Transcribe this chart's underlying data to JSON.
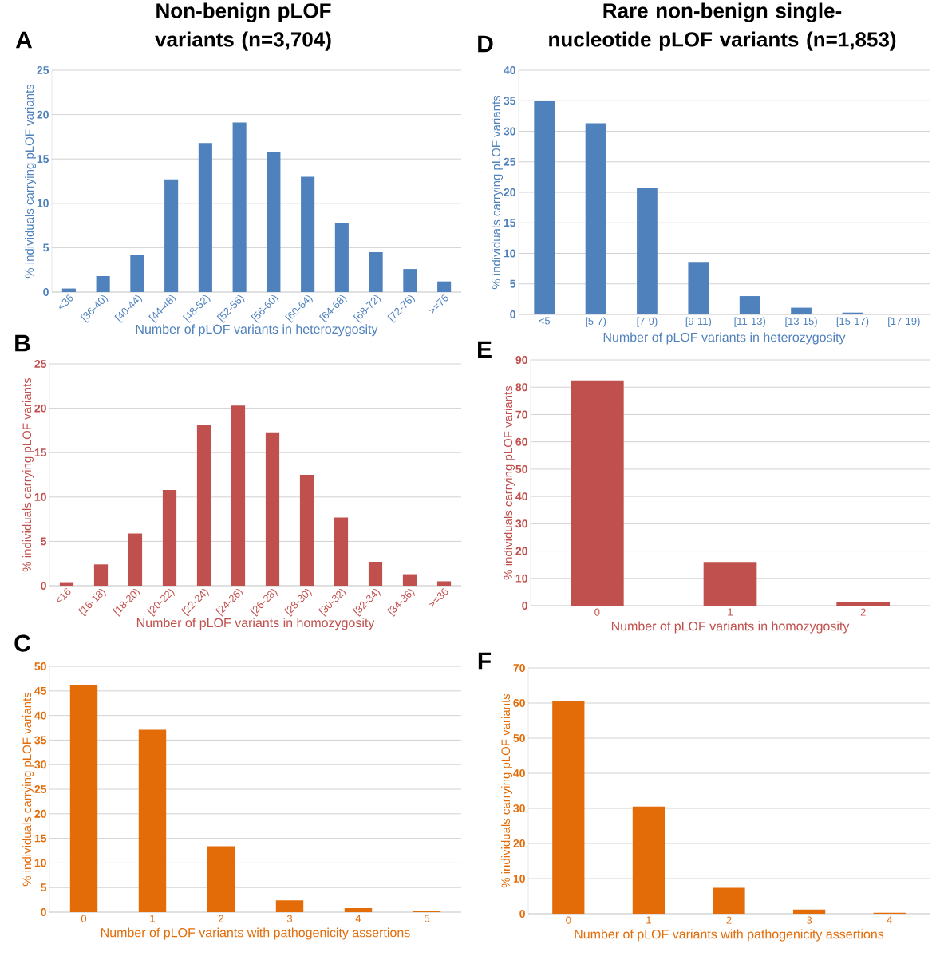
{
  "chart_data": [
    {
      "type": "bar",
      "title": "Non-benign pLOF variants (n=3,704)",
      "annotations": [
        "A"
      ],
      "categories": [
        "<36",
        "[36-40)",
        "[40-44)",
        "[44-48)",
        "[48-52)",
        "[52-56)",
        "[56-60)",
        "[60-64)",
        "[64-68)",
        "[68-72)",
        "[72-76)",
        ">=76"
      ],
      "values": [
        0.4,
        1.8,
        4.2,
        12.7,
        16.8,
        19.1,
        15.8,
        13.0,
        7.8,
        4.5,
        2.6,
        1.2
      ],
      "color": "#4f81bd",
      "xlabel": "Number of pLOF variants in heterozygosity",
      "ylabel": "% individuals carrying pLOF variants",
      "ylim": [
        0,
        25
      ],
      "yticks": [
        0,
        5,
        10,
        15,
        20,
        25
      ],
      "grid": "y"
    },
    {
      "type": "bar",
      "title": "Rare non-benign single-nucleotide pLOF variants (n=1,853)",
      "annotations": [
        "D"
      ],
      "categories": [
        "<5",
        "[5-7)",
        "[7-9)",
        "[9-11)",
        "[11-13)",
        "[13-15)",
        "[15-17)",
        "[17-19)"
      ],
      "values": [
        35.0,
        31.3,
        20.7,
        8.6,
        3.0,
        1.1,
        0.3,
        0.1
      ],
      "color": "#4f81bd",
      "xlabel": "Number of pLOF variants in heterozygosity",
      "ylabel": "% individuals carrying pLOF variants",
      "ylim": [
        0,
        40
      ],
      "yticks": [
        0,
        5,
        10,
        15,
        20,
        25,
        30,
        35,
        40
      ],
      "grid": "y"
    },
    {
      "type": "bar",
      "annotations": [
        "B"
      ],
      "categories": [
        "<16",
        "[16-18)",
        "[18-20)",
        "[20-22)",
        "[22-24)",
        "[24-26)",
        "[26-28)",
        "[28-30)",
        "[30-32)",
        "[32-34)",
        "[34-36)",
        ">=36"
      ],
      "values": [
        0.4,
        2.4,
        5.9,
        10.8,
        18.1,
        20.3,
        17.3,
        12.5,
        7.7,
        2.7,
        1.3,
        0.5
      ],
      "color": "#c0504d",
      "xlabel": "Number of pLOF variants in homozygosity",
      "ylabel": "% individuals carrying pLOF variants",
      "ylim": [
        0,
        25
      ],
      "yticks": [
        0,
        5,
        10,
        15,
        20,
        25
      ],
      "grid": "y"
    },
    {
      "type": "bar",
      "annotations": [
        "E"
      ],
      "categories": [
        "0",
        "1",
        "2"
      ],
      "values": [
        82.5,
        16.0,
        1.3
      ],
      "color": "#c0504d",
      "xlabel": "Number of pLOF variants in homozygosity",
      "ylabel": "% individuals carrying pLOF variants",
      "ylim": [
        0,
        90
      ],
      "yticks": [
        0,
        10,
        20,
        30,
        40,
        50,
        60,
        70,
        80,
        90
      ],
      "grid": "y"
    },
    {
      "type": "bar",
      "annotations": [
        "C"
      ],
      "categories": [
        "0",
        "1",
        "2",
        "3",
        "4",
        "5"
      ],
      "values": [
        46.1,
        37.1,
        13.4,
        2.4,
        0.8,
        0.2
      ],
      "color": "#e36c09",
      "xlabel": "Number of pLOF variants with pathogenicity assertions",
      "ylabel": "% individuals carrying pLOF variants",
      "ylim": [
        0,
        50
      ],
      "yticks": [
        0,
        5,
        10,
        15,
        20,
        25,
        30,
        35,
        40,
        45,
        50
      ],
      "grid": "y"
    },
    {
      "type": "bar",
      "annotations": [
        "F"
      ],
      "categories": [
        "0",
        "1",
        "2",
        "3",
        "4"
      ],
      "values": [
        60.5,
        30.5,
        7.4,
        1.2,
        0.3
      ],
      "color": "#e36c09",
      "xlabel": "Number of pLOF variants with pathogenicity assertions",
      "ylabel": "% individuals carrying pLOF variants",
      "ylim": [
        0,
        70
      ],
      "yticks": [
        0,
        10,
        20,
        30,
        40,
        50,
        60,
        70
      ],
      "grid": "y"
    }
  ]
}
